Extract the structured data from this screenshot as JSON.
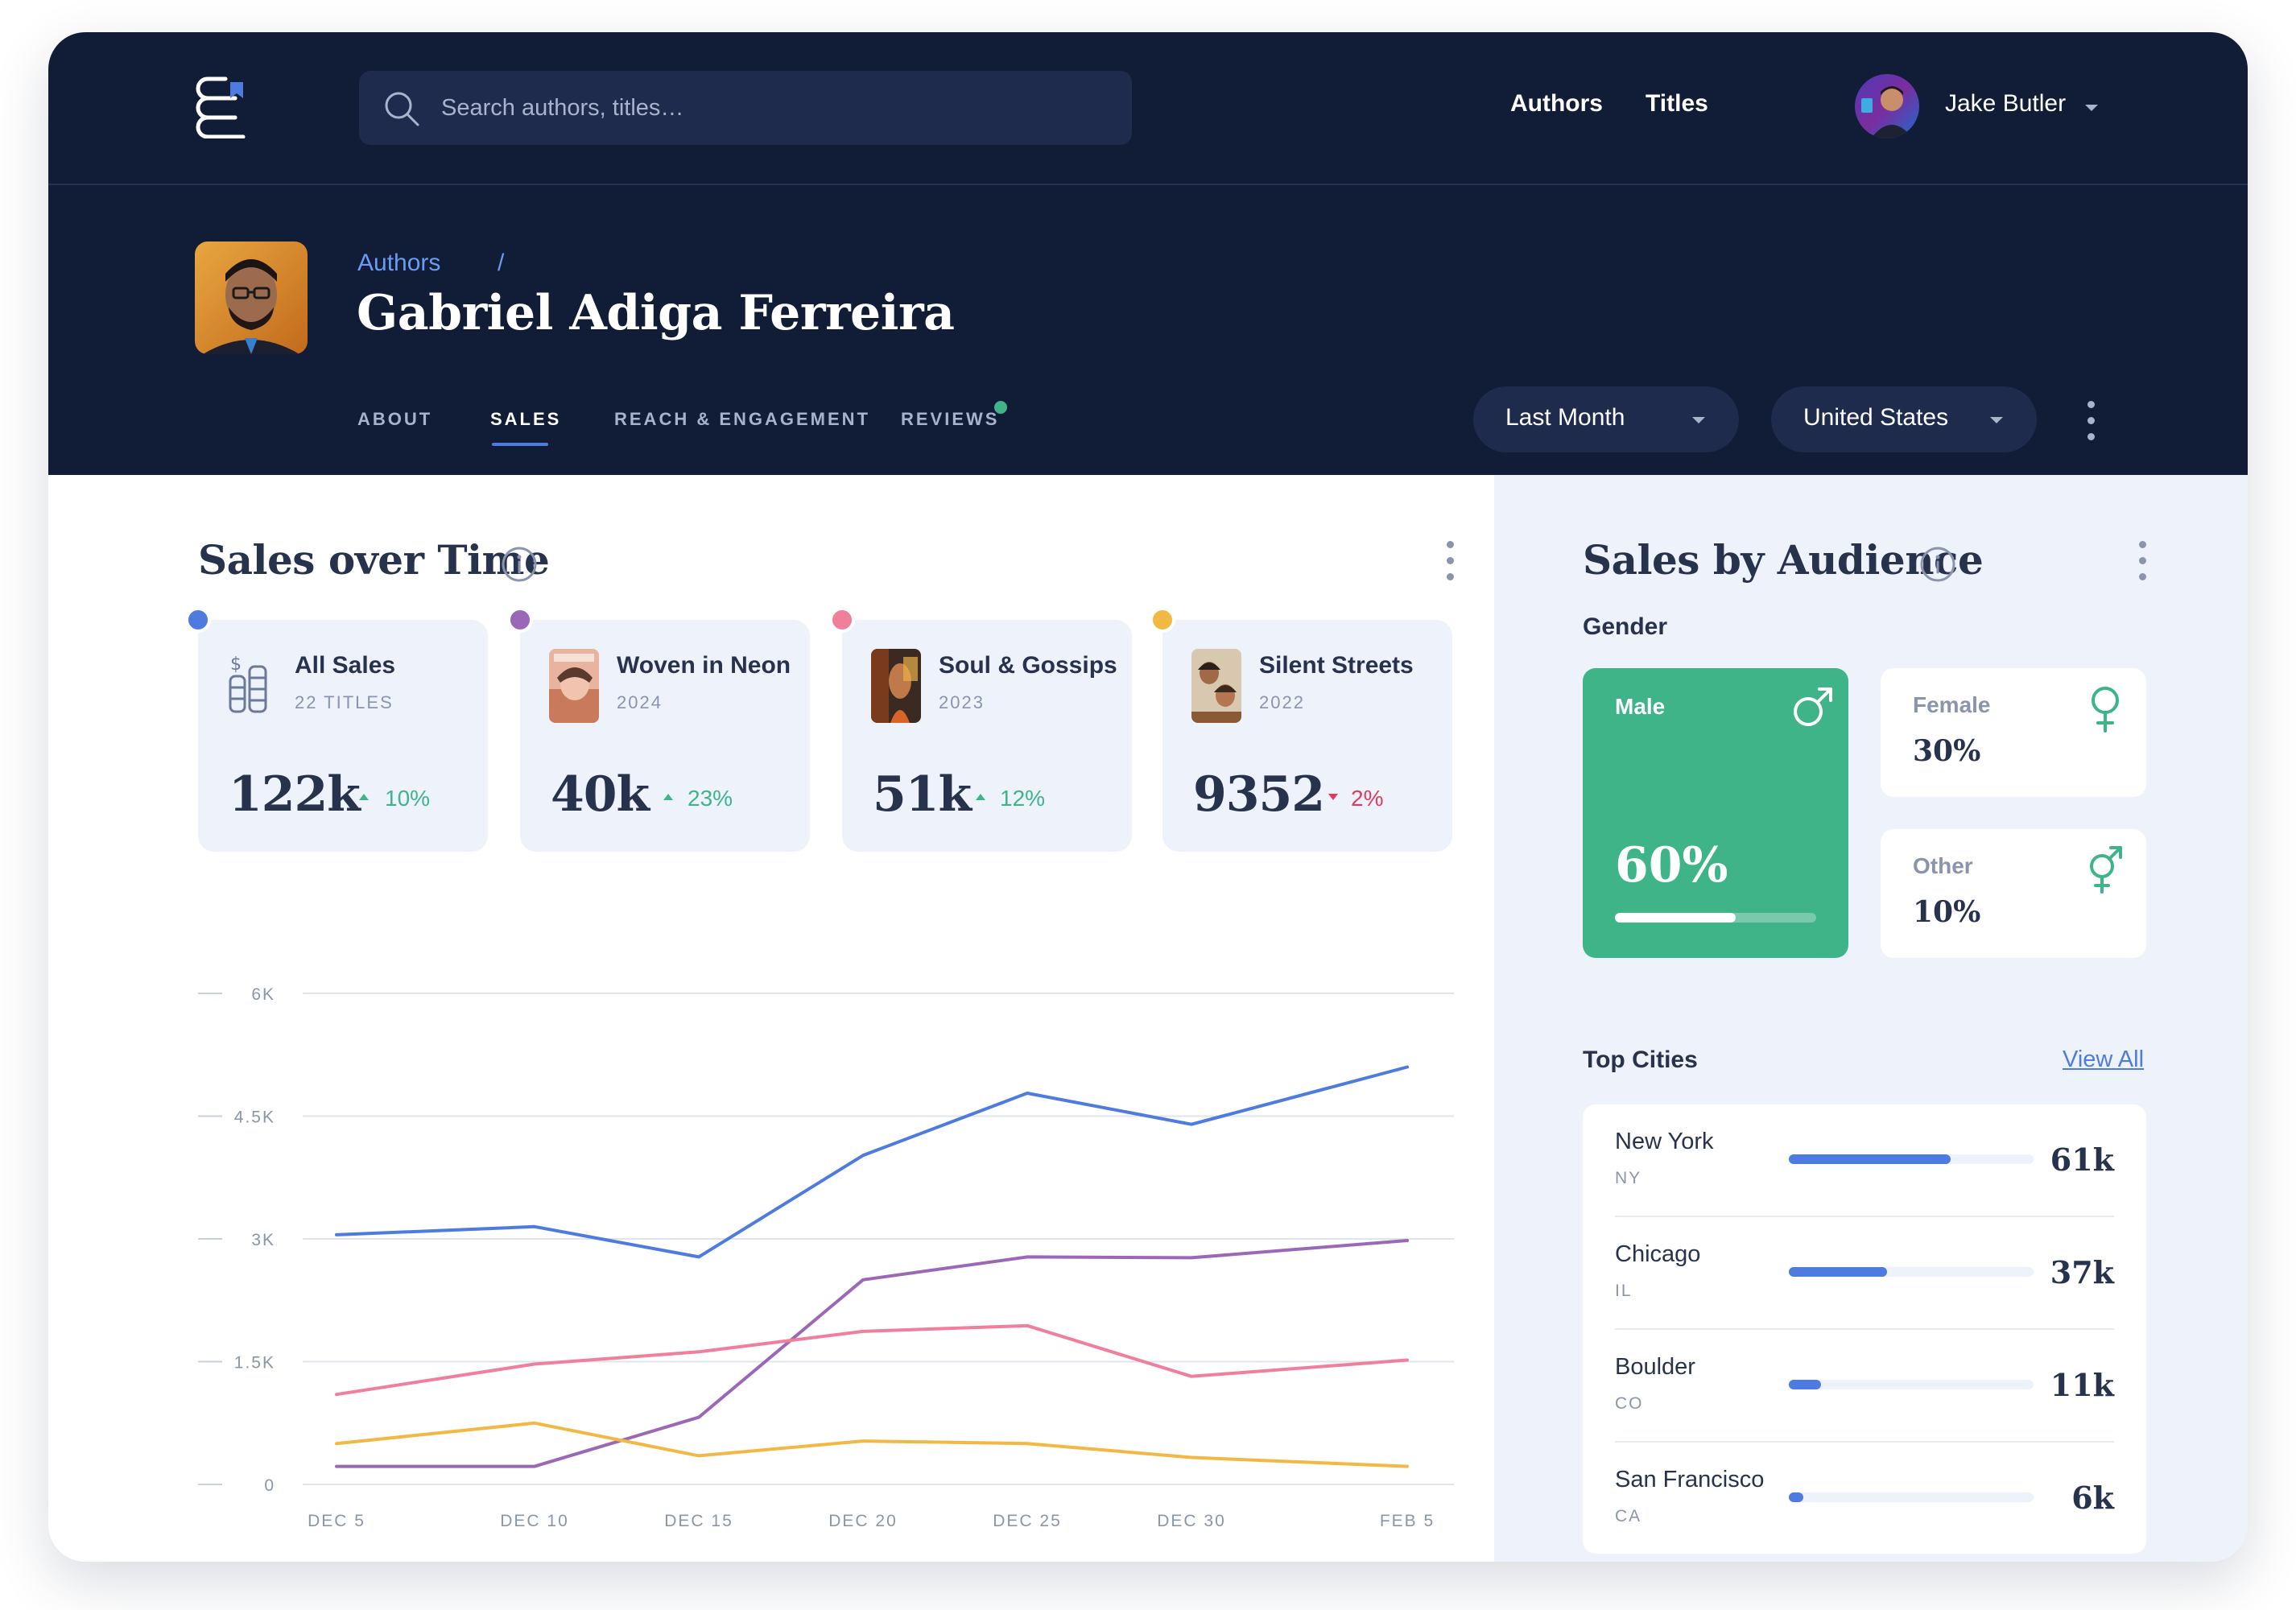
{
  "colors": {
    "header_bg": "#111c37",
    "accent_blue": "#4e7be0",
    "green": "#3fb489",
    "red": "#e33a5b",
    "panel_bg": "#eef2fa"
  },
  "topbar": {
    "search_placeholder": "Search authors, titles…",
    "nav": {
      "authors": "Authors",
      "titles": "Titles"
    },
    "user": {
      "name": "Jake Butler"
    }
  },
  "profile": {
    "breadcrumb": "Authors",
    "breadcrumb_separator": "/",
    "name": "Gabriel Adiga Ferreira",
    "tabs": [
      {
        "label": "ABOUT",
        "active": false
      },
      {
        "label": "SALES",
        "active": true
      },
      {
        "label": "REACH & ENGAGEMENT",
        "active": false
      },
      {
        "label": "REVIEWS",
        "active": false,
        "has_notification": true
      }
    ],
    "filters": {
      "period": "Last Month",
      "region": "United States"
    }
  },
  "sales_over_time": {
    "title": "Sales over Time",
    "cards": [
      {
        "title": "All Sales",
        "subtitle": "22 TITLES",
        "value": "122k",
        "change": "10%",
        "direction": "up",
        "color": "#4e7be0",
        "icon": "coins-icon"
      },
      {
        "title": "Woven in Neon",
        "subtitle": "2024",
        "value": "40k",
        "change": "23%",
        "direction": "up",
        "color": "#9b68b8",
        "icon": "book-cover-icon"
      },
      {
        "title": "Soul & Gossips",
        "subtitle": "2023",
        "value": "51k",
        "change": "12%",
        "direction": "up",
        "color": "#ef7f9b",
        "icon": "book-cover-icon"
      },
      {
        "title": "Silent Streets",
        "subtitle": "2022",
        "value": "9352",
        "change": "2%",
        "direction": "down",
        "color": "#f2b844",
        "icon": "book-cover-icon"
      }
    ]
  },
  "chart_data": {
    "type": "line",
    "title": "",
    "xlabel": "",
    "ylabel": "",
    "categories": [
      "DEC 5",
      "DEC 10",
      "DEC 15",
      "DEC 20",
      "DEC 25",
      "DEC 30",
      "FEB 5"
    ],
    "y_ticks": [
      "0",
      "1.5K",
      "3K",
      "4.5K",
      "6K"
    ],
    "ylim": [
      0,
      6000
    ],
    "grid": true,
    "series": [
      {
        "color": "#4e7be0",
        "values": [
          3050,
          3150,
          2780,
          4020,
          4780,
          4400,
          5100
        ]
      },
      {
        "color": "#9b68b8",
        "values": [
          220,
          220,
          820,
          2500,
          2780,
          2770,
          2980
        ]
      },
      {
        "color": "#ef7f9b",
        "values": [
          1100,
          1470,
          1620,
          1870,
          1940,
          1320,
          1520
        ]
      },
      {
        "color": "#f2b844",
        "values": [
          500,
          750,
          350,
          530,
          500,
          330,
          220
        ]
      }
    ]
  },
  "audience": {
    "title": "Sales by Audience",
    "gender_label": "Gender",
    "gender": {
      "male": {
        "label": "Male",
        "value": "60%",
        "fraction": 0.6,
        "icon": "male-icon"
      },
      "female": {
        "label": "Female",
        "value": "30%",
        "icon": "female-icon"
      },
      "other": {
        "label": "Other",
        "value": "10%",
        "icon": "transgender-icon"
      }
    },
    "cities_label": "Top Cities",
    "view_all": "View All",
    "cities": [
      {
        "name": "New York",
        "state": "NY",
        "value": "61k",
        "fraction": 0.66
      },
      {
        "name": "Chicago",
        "state": "IL",
        "value": "37k",
        "fraction": 0.4
      },
      {
        "name": "Boulder",
        "state": "CO",
        "value": "11k",
        "fraction": 0.13
      },
      {
        "name": "San Francisco",
        "state": "CA",
        "value": "6k",
        "fraction": 0.06
      }
    ]
  }
}
